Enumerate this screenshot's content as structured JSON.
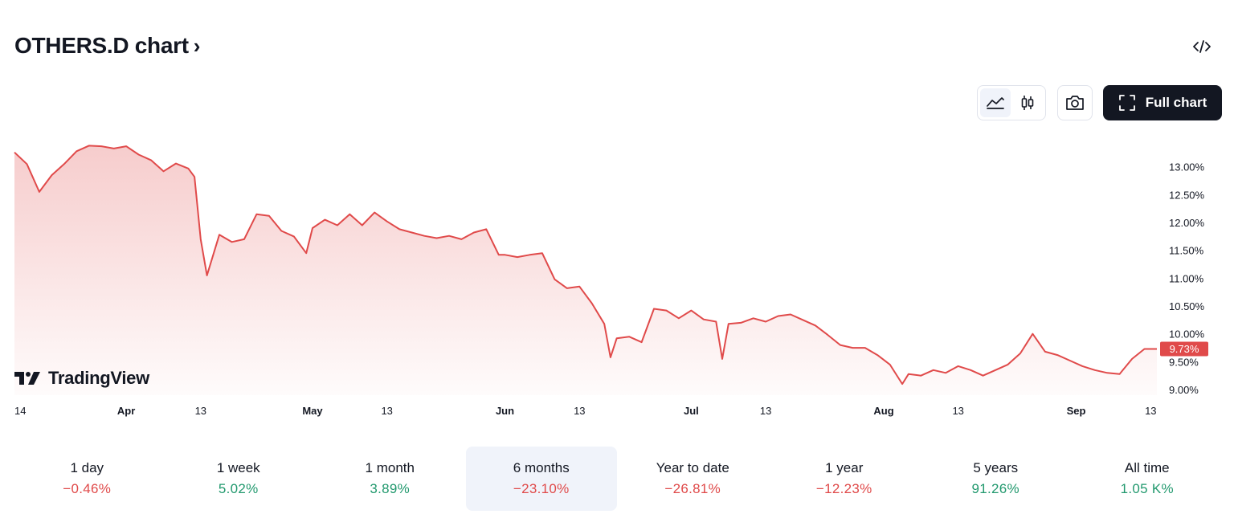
{
  "header": {
    "title": "OTHERS.D chart",
    "chevron": "›"
  },
  "toolbar": {
    "full_chart_label": "Full chart",
    "active_type": "area"
  },
  "watermark": {
    "text": "TradingView"
  },
  "colors": {
    "line": "#e04a4a",
    "up": "#22996e",
    "down": "#e04a4a",
    "text": "#131722"
  },
  "chart_data": {
    "type": "area",
    "unit": "%",
    "ylim": [
      8.9,
      13.4
    ],
    "y_ticks": [
      "13.00%",
      "12.50%",
      "12.00%",
      "11.50%",
      "11.00%",
      "10.50%",
      "10.00%",
      "9.50%",
      "9.00%"
    ],
    "x_ticks": [
      {
        "label": "14",
        "bold": false
      },
      {
        "label": "Apr",
        "bold": true
      },
      {
        "label": "13",
        "bold": false
      },
      {
        "label": "May",
        "bold": true
      },
      {
        "label": "13",
        "bold": false
      },
      {
        "label": "Jun",
        "bold": true
      },
      {
        "label": "13",
        "bold": false
      },
      {
        "label": "Jul",
        "bold": true
      },
      {
        "label": "13",
        "bold": false
      },
      {
        "label": "Aug",
        "bold": true
      },
      {
        "label": "13",
        "bold": false
      },
      {
        "label": "Sep",
        "bold": true
      },
      {
        "label": "13",
        "bold": false
      }
    ],
    "last_value": "9.73%",
    "series": [
      {
        "x": [
          "2024-03-14",
          "2024-03-16",
          "2024-03-18",
          "2024-03-20",
          "2024-03-22",
          "2024-03-24",
          "2024-03-26",
          "2024-03-28",
          "2024-03-30",
          "2024-04-01",
          "2024-04-03",
          "2024-04-05",
          "2024-04-07",
          "2024-04-09",
          "2024-04-11",
          "2024-04-12",
          "2024-04-13",
          "2024-04-14",
          "2024-04-16",
          "2024-04-18",
          "2024-04-20",
          "2024-04-22",
          "2024-04-24",
          "2024-04-26",
          "2024-04-28",
          "2024-04-30",
          "2024-05-01",
          "2024-05-03",
          "2024-05-05",
          "2024-05-07",
          "2024-05-09",
          "2024-05-11",
          "2024-05-13",
          "2024-05-15",
          "2024-05-17",
          "2024-05-19",
          "2024-05-21",
          "2024-05-23",
          "2024-05-25",
          "2024-05-27",
          "2024-05-29",
          "2024-05-31",
          "2024-06-01",
          "2024-06-03",
          "2024-06-05",
          "2024-06-07",
          "2024-06-09",
          "2024-06-11",
          "2024-06-13",
          "2024-06-15",
          "2024-06-17",
          "2024-06-18",
          "2024-06-19",
          "2024-06-21",
          "2024-06-23",
          "2024-06-25",
          "2024-06-27",
          "2024-06-29",
          "2024-07-01",
          "2024-07-03",
          "2024-07-05",
          "2024-07-06",
          "2024-07-07",
          "2024-07-09",
          "2024-07-11",
          "2024-07-13",
          "2024-07-15",
          "2024-07-17",
          "2024-07-19",
          "2024-07-21",
          "2024-07-23",
          "2024-07-25",
          "2024-07-27",
          "2024-07-29",
          "2024-07-31",
          "2024-08-02",
          "2024-08-04",
          "2024-08-05",
          "2024-08-07",
          "2024-08-09",
          "2024-08-11",
          "2024-08-13",
          "2024-08-15",
          "2024-08-17",
          "2024-08-19",
          "2024-08-21",
          "2024-08-23",
          "2024-08-25",
          "2024-08-27",
          "2024-08-29",
          "2024-08-31",
          "2024-09-02",
          "2024-09-04",
          "2024-09-06",
          "2024-09-08",
          "2024-09-10",
          "2024-09-12",
          "2024-09-14"
        ],
        "y": [
          13.26,
          13.05,
          12.55,
          12.85,
          13.05,
          13.28,
          13.38,
          13.37,
          13.33,
          13.37,
          13.22,
          13.12,
          12.92,
          13.06,
          12.97,
          12.82,
          11.7,
          11.05,
          11.78,
          11.65,
          11.7,
          12.15,
          12.12,
          11.85,
          11.75,
          11.45,
          11.9,
          12.05,
          11.95,
          12.15,
          11.95,
          12.18,
          12.02,
          11.88,
          11.82,
          11.76,
          11.72,
          11.76,
          11.7,
          11.82,
          11.88,
          11.42,
          11.42,
          11.38,
          11.42,
          11.45,
          10.98,
          10.82,
          10.85,
          10.55,
          10.18,
          9.58,
          9.92,
          9.95,
          9.85,
          10.45,
          10.42,
          10.28,
          10.42,
          10.26,
          10.22,
          9.55,
          10.18,
          10.2,
          10.28,
          10.22,
          10.32,
          10.35,
          10.25,
          10.15,
          9.98,
          9.8,
          9.75,
          9.75,
          9.62,
          9.45,
          9.1,
          9.28,
          9.25,
          9.35,
          9.3,
          9.42,
          9.35,
          9.25,
          9.35,
          9.45,
          9.65,
          10.0,
          9.68,
          9.62,
          9.52,
          9.42,
          9.35,
          9.3,
          9.28,
          9.55,
          9.73,
          9.73
        ]
      }
    ]
  },
  "periods": [
    {
      "label": "1 day",
      "value": "−0.46%",
      "dir": "down",
      "active": false
    },
    {
      "label": "1 week",
      "value": "5.02%",
      "dir": "up",
      "active": false
    },
    {
      "label": "1 month",
      "value": "3.89%",
      "dir": "up",
      "active": false
    },
    {
      "label": "6 months",
      "value": "−23.10%",
      "dir": "down",
      "active": true
    },
    {
      "label": "Year to date",
      "value": "−26.81%",
      "dir": "down",
      "active": false
    },
    {
      "label": "1 year",
      "value": "−12.23%",
      "dir": "down",
      "active": false
    },
    {
      "label": "5 years",
      "value": "91.26%",
      "dir": "up",
      "active": false
    },
    {
      "label": "All time",
      "value": "1.05 K%",
      "dir": "up",
      "active": false
    }
  ]
}
